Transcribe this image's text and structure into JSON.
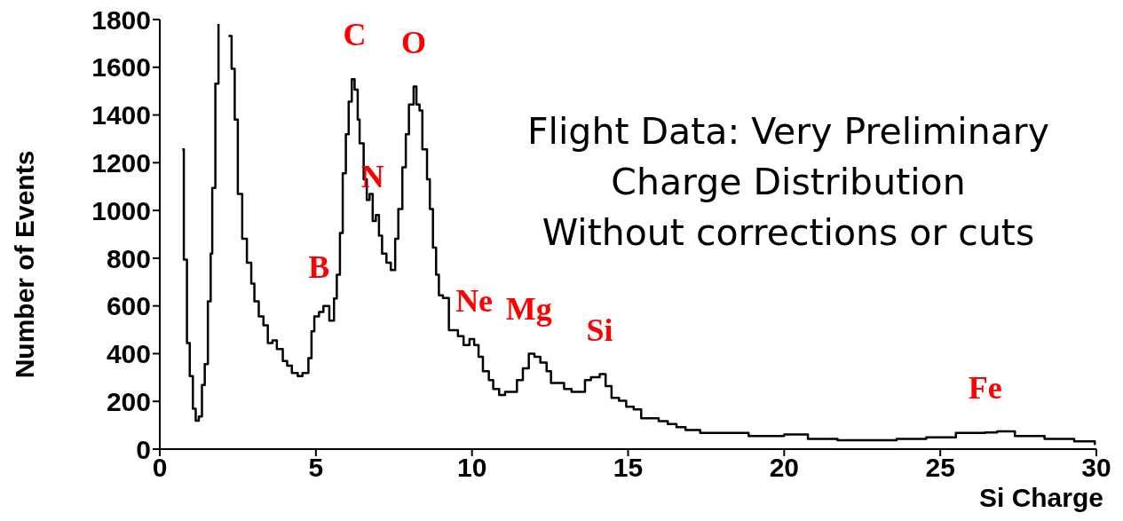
{
  "chart_data": {
    "type": "step",
    "xlabel": "Si Charge",
    "ylabel": "Number of Events",
    "xlim": [
      0,
      30
    ],
    "xticks": [
      0,
      5,
      10,
      15,
      20,
      25,
      30
    ],
    "ylim": [
      0,
      1800
    ],
    "yticks": [
      0,
      200,
      400,
      600,
      800,
      1000,
      1200,
      1400,
      1600,
      1800
    ],
    "grid": false,
    "series": [
      {
        "color": "#000000",
        "x": [
          0.72,
          0.77,
          0.87,
          0.96,
          1.06,
          1.15,
          1.25,
          1.35,
          1.44,
          1.54,
          1.63,
          1.68,
          1.78,
          1.88,
          1.93,
          2.2,
          2.3,
          2.4,
          2.5,
          2.64,
          2.79,
          2.93,
          3.03,
          3.17,
          3.32,
          3.46,
          3.61,
          3.75,
          3.94,
          4.08,
          4.23,
          4.42,
          4.57,
          4.76,
          4.86,
          4.95,
          5.1,
          5.24,
          5.43,
          5.58,
          5.67,
          5.77,
          5.86,
          5.96,
          6.05,
          6.15,
          6.24,
          6.34,
          6.4,
          6.53,
          6.63,
          6.72,
          6.82,
          6.92,
          7.02,
          7.12,
          7.26,
          7.4,
          7.54,
          7.64,
          7.77,
          7.88,
          7.98,
          8.13,
          8.22,
          8.32,
          8.41,
          8.56,
          8.65,
          8.75,
          8.85,
          8.94,
          9.07,
          9.26,
          9.55,
          9.73,
          9.92,
          10.07,
          10.21,
          10.35,
          10.54,
          10.68,
          10.87,
          11.06,
          11.3,
          11.44,
          11.63,
          11.82,
          12.0,
          12.19,
          12.39,
          12.53,
          12.72,
          12.95,
          13.19,
          13.43,
          13.62,
          13.81,
          14.09,
          14.28,
          14.47,
          14.71,
          14.94,
          15.18,
          15.42,
          15.7,
          15.98,
          16.27,
          16.55,
          16.84,
          17.13,
          17.31,
          17.92,
          18.86,
          20.0,
          20.76,
          21.71,
          22.65,
          23.6,
          24.55,
          25.5,
          26.44,
          26.82,
          27.39,
          28.34,
          29.29,
          29.95
        ],
        "values": [
          1256,
          794,
          444,
          306,
          169,
          119,
          137,
          269,
          356,
          619,
          819,
          1094,
          1531,
          1781,
          null,
          1731,
          1594,
          1381,
          1069,
          881,
          781,
          694,
          619,
          556,
          519,
          444,
          456,
          419,
          369,
          350,
          319,
          306,
          319,
          381,
          494,
          556,
          575,
          600,
          538,
          631,
          731,
          906,
          1156,
          1319,
          1456,
          1550,
          1506,
          1381,
          1281,
          1131,
          1044,
          1069,
          956,
          981,
          894,
          819,
          781,
          750,
          881,
          1006,
          1181,
          1319,
          1444,
          1519,
          1444,
          1419,
          1256,
          1131,
          1006,
          844,
          731,
          644,
          633,
          498,
          473,
          436,
          461,
          436,
          387,
          326,
          289,
          252,
          227,
          240,
          240,
          289,
          338,
          400,
          387,
          363,
          326,
          277,
          277,
          252,
          240,
          240,
          289,
          301,
          314,
          264,
          215,
          203,
          178,
          166,
          129,
          129,
          117,
          105,
          92,
          80,
          80,
          68,
          68,
          55,
          61,
          43,
          37,
          37,
          43,
          49,
          68,
          70,
          74,
          55,
          43,
          33,
          18
        ]
      }
    ],
    "annotations": [
      "Flight Data: Very Preliminary",
      "Charge Distribution",
      "Without corrections or cuts",
      {
        "text": "B",
        "x": 5.1,
        "y": 575
      },
      {
        "text": "C",
        "x": 6.24,
        "y": 1550
      },
      {
        "text": "N",
        "x": 6.82,
        "y": 956
      },
      {
        "text": "O",
        "x": 8.13,
        "y": 1519
      },
      {
        "text": "Ne",
        "x": 10.07,
        "y": 436
      },
      {
        "text": "Mg",
        "x": 11.82,
        "y": 400
      },
      {
        "text": "Si",
        "x": 14.09,
        "y": 314
      },
      {
        "text": "Fe",
        "x": 26.44,
        "y": 70
      }
    ]
  }
}
